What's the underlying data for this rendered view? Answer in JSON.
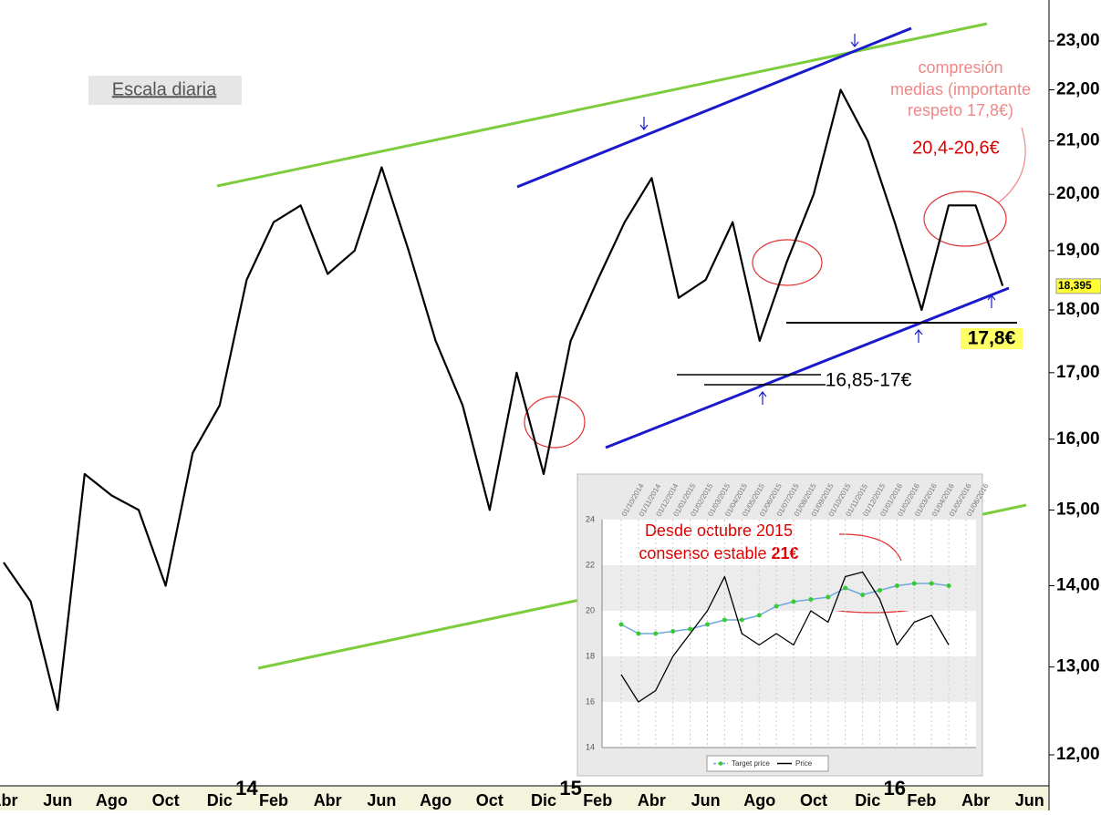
{
  "chart_data": [
    {
      "type": "line",
      "log_scale": true,
      "color": "#000000",
      "categories": [
        "Abr",
        null,
        "Jun",
        null,
        "Ago",
        null,
        "Oct",
        null,
        "Dic",
        "14",
        "Feb",
        null,
        "Abr",
        null,
        "Jun",
        null,
        "Ago",
        null,
        "Oct",
        null,
        "Dic",
        "15",
        "Feb",
        null,
        "Abr",
        null,
        "Jun",
        null,
        "Ago",
        null,
        "Oct",
        null,
        "Dic",
        "16",
        "Feb",
        null,
        "Abr",
        null,
        "Jun"
      ],
      "values": [
        14.3,
        13.8,
        12.5,
        15.5,
        15.2,
        15.0,
        14.0,
        15.8,
        16.5,
        18.5,
        19.5,
        19.8,
        18.6,
        19.0,
        20.5,
        19.0,
        17.5,
        16.5,
        15.0,
        17.0,
        15.5,
        17.5,
        18.5,
        19.5,
        20.3,
        18.2,
        18.5,
        19.5,
        17.5,
        18.8,
        20.0,
        22.0,
        21.0,
        19.5,
        18.0,
        19.8,
        19.8,
        18.4,
        null
      ],
      "ylim": [
        11.6,
        23.6
      ],
      "yticks": [
        {
          "value": 12,
          "label": "12,00"
        },
        {
          "value": 13,
          "label": "13,00"
        },
        {
          "value": 14,
          "label": "14,00"
        },
        {
          "value": 15,
          "label": "15,00"
        },
        {
          "value": 16,
          "label": "16,00"
        },
        {
          "value": 17,
          "label": "17,00"
        },
        {
          "value": 18,
          "label": "18,00"
        },
        {
          "value": 19,
          "label": "19,00"
        },
        {
          "value": 20,
          "label": "20,00"
        },
        {
          "value": 21,
          "label": "21,00"
        },
        {
          "value": 22,
          "label": "22,00"
        },
        {
          "value": 23,
          "label": "23,00"
        }
      ],
      "last_value": {
        "value": 18.395,
        "label": "18,395"
      },
      "annotations": [
        "Escala diaria",
        "compresión",
        "medias (importante",
        "respeto 17,8€)",
        "20,4-20,6€",
        "16,85-17€",
        "17,8€"
      ]
    },
    {
      "type": "line",
      "x": [
        "01/10/2014",
        "01/11/2014",
        "01/12/2014",
        "01/01/2015",
        "01/02/2015",
        "01/03/2015",
        "01/04/2015",
        "01/05/2015",
        "01/06/2015",
        "01/07/2015",
        "01/08/2015",
        "01/09/2015",
        "01/10/2015",
        "01/11/2015",
        "01/12/2015",
        "01/01/2016",
        "01/02/2016",
        "01/03/2016",
        "01/04/2016",
        "01/05/2016",
        "01/06/2016"
      ],
      "series": [
        {
          "name": "Target price",
          "color": "#6fa8dc",
          "values": [
            19.4,
            19.0,
            19.0,
            19.1,
            19.2,
            19.4,
            19.6,
            19.6,
            19.8,
            20.2,
            20.4,
            20.5,
            20.6,
            21.0,
            20.7,
            20.9,
            21.1,
            21.2,
            21.2,
            21.1,
            null
          ]
        },
        {
          "name": "Price",
          "color": "#000000",
          "values": [
            17.2,
            16.0,
            16.5,
            18.0,
            19.0,
            20.0,
            21.5,
            19.0,
            18.5,
            19.0,
            18.5,
            20.0,
            19.5,
            21.5,
            21.7,
            20.5,
            18.5,
            19.5,
            19.8,
            18.5,
            null
          ]
        }
      ],
      "ylim": [
        14,
        24
      ],
      "yticks": [
        14,
        16,
        18,
        20,
        22,
        24
      ],
      "annotation": [
        "Desde octubre 2015",
        "consenso estable",
        "21€"
      ]
    }
  ]
}
